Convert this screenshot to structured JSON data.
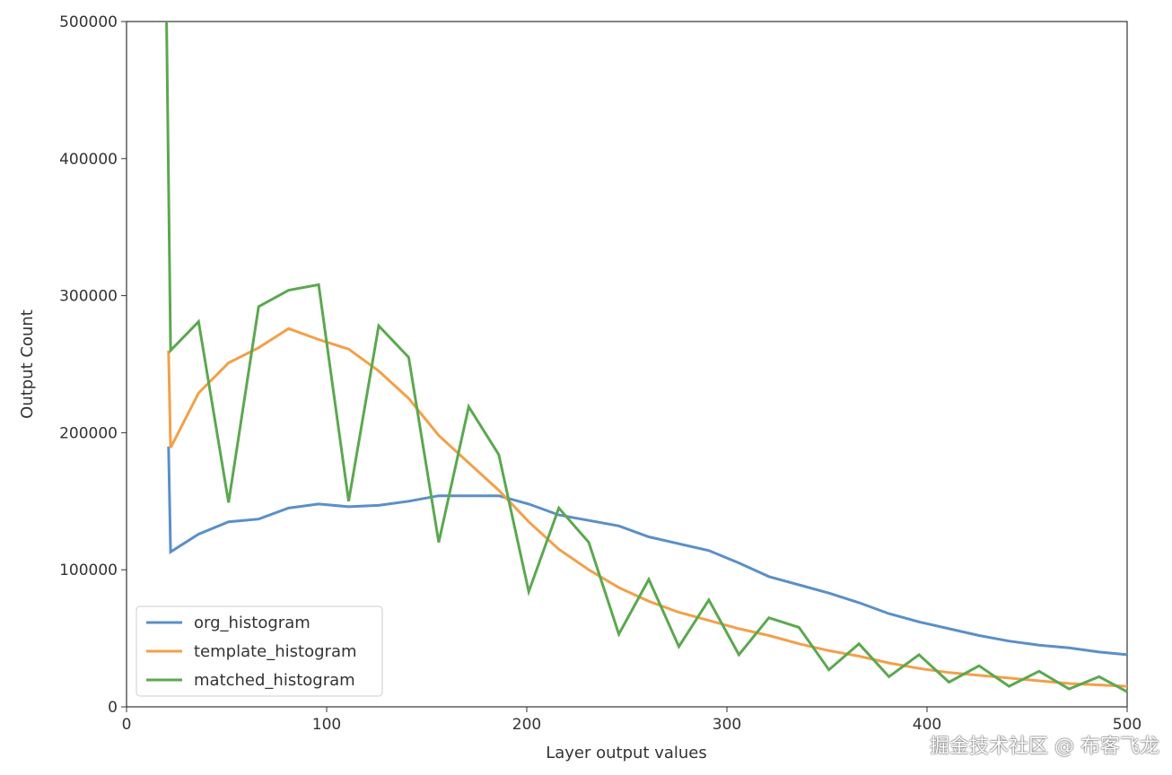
{
  "chart_data": {
    "type": "line",
    "title": "",
    "xlabel": "Layer output values",
    "ylabel": "Output Count",
    "xlim": [
      0,
      500
    ],
    "ylim": [
      0,
      500000
    ],
    "xticks": [
      "0",
      "100",
      "200",
      "300",
      "400",
      "500"
    ],
    "yticks": [
      "0",
      "100000",
      "200000",
      "300000",
      "400000",
      "500000"
    ],
    "grid": false,
    "legend_position": "lower-left",
    "series": [
      {
        "name": "org_histogram",
        "color": "#5b8fc7",
        "x": [
          21,
          22,
          36,
          51,
          66,
          81,
          96,
          111,
          126,
          141,
          156,
          171,
          186,
          201,
          216,
          231,
          246,
          261,
          276,
          291,
          306,
          321,
          336,
          351,
          366,
          381,
          396,
          411,
          426,
          441,
          456,
          471,
          486,
          500
        ],
        "y": [
          190000,
          113000,
          126000,
          135000,
          137000,
          145000,
          148000,
          146000,
          147000,
          150000,
          154000,
          154000,
          154000,
          148000,
          140000,
          136000,
          132000,
          124000,
          119000,
          114000,
          105000,
          95000,
          89000,
          83000,
          76000,
          68000,
          62000,
          57000,
          52000,
          48000,
          45000,
          43000,
          40000,
          38000
        ]
      },
      {
        "name": "template_histogram",
        "color": "#f2a04a",
        "x": [
          21,
          22,
          36,
          51,
          66,
          81,
          96,
          111,
          126,
          141,
          156,
          171,
          186,
          201,
          216,
          231,
          246,
          261,
          276,
          291,
          306,
          321,
          336,
          351,
          366,
          381,
          396,
          411,
          426,
          441,
          456,
          471,
          486,
          500
        ],
        "y": [
          260000,
          189000,
          229000,
          251000,
          262000,
          276000,
          268000,
          261000,
          245000,
          225000,
          198000,
          178000,
          158000,
          135000,
          115000,
          100000,
          87000,
          77000,
          69000,
          63000,
          57000,
          52000,
          46000,
          41000,
          37000,
          32000,
          28000,
          25000,
          23000,
          21000,
          19000,
          17000,
          16000,
          15000
        ]
      },
      {
        "name": "matched_histogram",
        "color": "#5ba84f",
        "x": [
          20,
          22,
          36,
          51,
          66,
          81,
          96,
          111,
          126,
          141,
          156,
          171,
          186,
          201,
          216,
          231,
          246,
          261,
          276,
          291,
          306,
          321,
          336,
          351,
          366,
          381,
          396,
          411,
          426,
          441,
          456,
          471,
          486,
          500
        ],
        "y": [
          500000,
          260000,
          281000,
          149000,
          292000,
          304000,
          308000,
          150000,
          278000,
          255000,
          120000,
          219000,
          184000,
          84000,
          145000,
          120000,
          53000,
          93000,
          44000,
          78000,
          38000,
          65000,
          58000,
          27000,
          46000,
          22000,
          38000,
          18000,
          30000,
          15000,
          26000,
          13000,
          22000,
          11000
        ]
      }
    ]
  },
  "watermark": "掘金技术社区 @ 布客飞龙"
}
